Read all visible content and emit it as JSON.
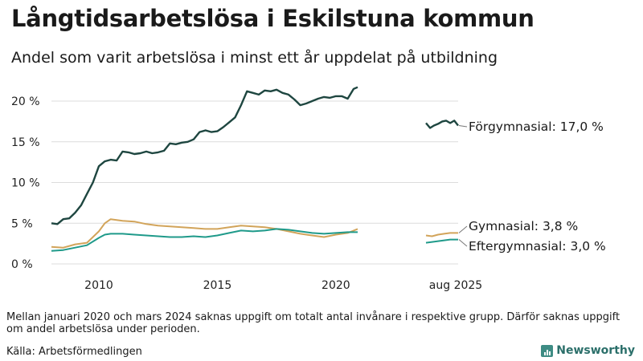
{
  "header": {
    "title": "Långtidsarbetslösa i Eskilstuna kommun",
    "subtitle": "Andel som varit arbetslösa i minst ett år uppdelat på utbildning"
  },
  "footer": {
    "note": "Mellan januari 2020 och mars 2024 saknas uppgift om totalt antal invånare i respektive grupp. Därför saknas uppgift om andel arbetslösa under perioden.",
    "source": "Källa: Arbetsförmedlingen",
    "brand": "Newsworthy"
  },
  "colors": {
    "forgymnasial": "#1e4640",
    "gymnasial": "#d2a45a",
    "eftergymnasial": "#1f9a8a",
    "grid": "#dcdcdc"
  },
  "chart_data": {
    "type": "line",
    "ylim": [
      0,
      22
    ],
    "yticks": [
      0,
      5,
      10,
      15,
      20
    ],
    "ytick_labels": [
      "0 %",
      "5 %",
      "10 %",
      "15 %",
      "20 %"
    ],
    "xticks": [
      2010,
      2015,
      2020
    ],
    "xtick_labels": [
      "2010",
      "2015",
      "2020"
    ],
    "extra_xtick_label": "aug 2025",
    "series": [
      {
        "name": "Förgymnasial",
        "key": "forgymnasial",
        "end_label": "Förgymnasial: 17,0 %",
        "segments": [
          {
            "x": [
              2008.0,
              2008.25,
              2008.5,
              2008.75,
              2009.0,
              2009.25,
              2009.5,
              2009.75,
              2010.0,
              2010.25,
              2010.5,
              2010.75,
              2011.0,
              2011.25,
              2011.5,
              2011.75,
              2012.0,
              2012.25,
              2012.5,
              2012.75,
              2013.0,
              2013.25,
              2013.5,
              2013.75,
              2014.0,
              2014.25,
              2014.5,
              2014.75,
              2015.0,
              2015.25,
              2015.5,
              2015.75,
              2016.0,
              2016.25,
              2016.5,
              2016.75,
              2017.0,
              2017.25,
              2017.5,
              2017.75,
              2018.0,
              2018.25,
              2018.5,
              2018.75,
              2019.0,
              2019.25,
              2019.5,
              2019.75,
              2020.0,
              2020.25,
              2020.5,
              2020.75,
              2020.92
            ],
            "y": [
              5.0,
              4.9,
              5.5,
              5.6,
              6.3,
              7.2,
              8.6,
              10.0,
              12.0,
              12.6,
              12.8,
              12.7,
              13.8,
              13.7,
              13.5,
              13.6,
              13.8,
              13.6,
              13.7,
              13.9,
              14.8,
              14.7,
              14.9,
              15.0,
              15.3,
              16.2,
              16.4,
              16.2,
              16.3,
              16.8,
              17.4,
              18.0,
              19.5,
              21.2,
              21.0,
              20.8,
              21.3,
              21.2,
              21.4,
              21.0,
              20.8,
              20.2,
              19.5,
              19.7,
              20.0,
              20.3,
              20.5,
              20.4,
              20.6,
              20.6,
              20.3,
              21.5,
              21.7
            ]
          },
          {
            "x": [
              2024.25,
              2024.42,
              2024.58,
              2024.75,
              2024.92,
              2025.08,
              2025.25,
              2025.42,
              2025.58
            ],
            "y": [
              17.3,
              16.7,
              17.0,
              17.2,
              17.5,
              17.6,
              17.3,
              17.6,
              17.0
            ]
          }
        ]
      },
      {
        "name": "Gymnasial",
        "key": "gymnasial",
        "end_label": "Gymnasial:  3,8 %",
        "segments": [
          {
            "x": [
              2008.0,
              2008.5,
              2009.0,
              2009.5,
              2010.0,
              2010.25,
              2010.5,
              2010.75,
              2011.0,
              2011.5,
              2012.0,
              2012.5,
              2013.0,
              2013.5,
              2014.0,
              2014.5,
              2015.0,
              2015.5,
              2016.0,
              2016.5,
              2017.0,
              2017.5,
              2018.0,
              2018.5,
              2019.0,
              2019.5,
              2020.0,
              2020.5,
              2020.92
            ],
            "y": [
              2.1,
              2.0,
              2.4,
              2.6,
              4.0,
              5.0,
              5.5,
              5.4,
              5.3,
              5.2,
              4.9,
              4.7,
              4.6,
              4.5,
              4.4,
              4.3,
              4.3,
              4.5,
              4.7,
              4.6,
              4.5,
              4.3,
              4.0,
              3.7,
              3.5,
              3.3,
              3.6,
              3.8,
              4.3
            ]
          },
          {
            "x": [
              2024.25,
              2024.5,
              2024.75,
              2025.0,
              2025.25,
              2025.58
            ],
            "y": [
              3.5,
              3.4,
              3.6,
              3.7,
              3.8,
              3.8
            ]
          }
        ]
      },
      {
        "name": "Eftergymnasial",
        "key": "eftergymnasial",
        "end_label": "Eftergymnasial:  3,0 %",
        "segments": [
          {
            "x": [
              2008.0,
              2008.5,
              2009.0,
              2009.5,
              2010.0,
              2010.25,
              2010.5,
              2011.0,
              2011.5,
              2012.0,
              2012.5,
              2013.0,
              2013.5,
              2014.0,
              2014.5,
              2015.0,
              2015.5,
              2016.0,
              2016.5,
              2017.0,
              2017.5,
              2018.0,
              2018.5,
              2019.0,
              2019.5,
              2020.0,
              2020.5,
              2020.92
            ],
            "y": [
              1.6,
              1.7,
              2.0,
              2.3,
              3.2,
              3.6,
              3.7,
              3.7,
              3.6,
              3.5,
              3.4,
              3.3,
              3.3,
              3.4,
              3.3,
              3.5,
              3.8,
              4.1,
              4.0,
              4.1,
              4.3,
              4.2,
              4.0,
              3.8,
              3.7,
              3.8,
              3.9,
              3.9
            ]
          },
          {
            "x": [
              2024.25,
              2024.5,
              2024.75,
              2025.0,
              2025.25,
              2025.58
            ],
            "y": [
              2.6,
              2.7,
              2.8,
              2.9,
              3.0,
              3.0
            ]
          }
        ]
      }
    ]
  }
}
